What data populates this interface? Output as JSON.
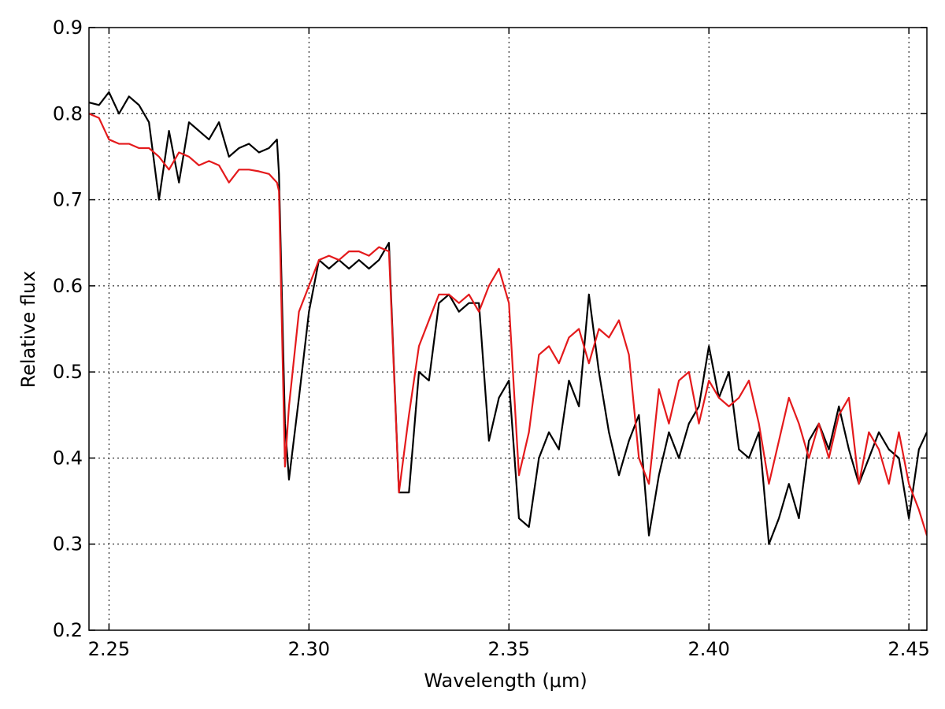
{
  "chart_data": {
    "type": "line",
    "xlabel": "Wavelength (μm)",
    "ylabel": "Relative flux",
    "x": [
      2.245,
      2.2475,
      2.25,
      2.2525,
      2.255,
      2.2575,
      2.26,
      2.2625,
      2.265,
      2.2675,
      2.27,
      2.2725,
      2.275,
      2.2775,
      2.28,
      2.2825,
      2.285,
      2.2875,
      2.29,
      2.292,
      2.2925,
      2.294,
      2.295,
      2.2975,
      2.3,
      2.3025,
      2.305,
      2.3075,
      2.31,
      2.3125,
      2.315,
      2.3175,
      2.32,
      2.3225,
      2.325,
      2.3275,
      2.33,
      2.3325,
      2.335,
      2.3375,
      2.34,
      2.3425,
      2.345,
      2.3475,
      2.35,
      2.3525,
      2.355,
      2.3575,
      2.36,
      2.3625,
      2.365,
      2.3675,
      2.37,
      2.3725,
      2.375,
      2.3775,
      2.38,
      2.3825,
      2.385,
      2.3875,
      2.39,
      2.3925,
      2.395,
      2.3975,
      2.4,
      2.4025,
      2.405,
      2.4075,
      2.41,
      2.4125,
      2.415,
      2.4175,
      2.42,
      2.4225,
      2.425,
      2.4275,
      2.43,
      2.4325,
      2.435,
      2.4375,
      2.44,
      2.4425,
      2.445,
      2.4475,
      2.45,
      2.4525,
      2.4545
    ],
    "series": [
      {
        "color": "#000000",
        "values": [
          0.813,
          0.81,
          0.825,
          0.8,
          0.82,
          0.81,
          0.79,
          0.7,
          0.78,
          0.72,
          0.79,
          0.78,
          0.77,
          0.79,
          0.75,
          0.76,
          0.765,
          0.755,
          0.76,
          0.77,
          0.73,
          0.44,
          0.375,
          0.47,
          0.57,
          0.63,
          0.62,
          0.63,
          0.62,
          0.63,
          0.62,
          0.63,
          0.65,
          0.36,
          0.36,
          0.5,
          0.49,
          0.58,
          0.59,
          0.57,
          0.58,
          0.58,
          0.42,
          0.47,
          0.49,
          0.33,
          0.32,
          0.4,
          0.43,
          0.41,
          0.49,
          0.46,
          0.59,
          0.5,
          0.43,
          0.38,
          0.42,
          0.45,
          0.31,
          0.38,
          0.43,
          0.4,
          0.44,
          0.46,
          0.53,
          0.47,
          0.5,
          0.41,
          0.4,
          0.43,
          0.3,
          0.33,
          0.37,
          0.33,
          0.42,
          0.44,
          0.41,
          0.46,
          0.41,
          0.37,
          0.4,
          0.43,
          0.41,
          0.4,
          0.33,
          0.41,
          0.43
        ]
      },
      {
        "color": "#e41a1c",
        "values": [
          0.8,
          0.795,
          0.77,
          0.765,
          0.765,
          0.76,
          0.76,
          0.75,
          0.735,
          0.755,
          0.75,
          0.74,
          0.745,
          0.74,
          0.72,
          0.735,
          0.735,
          0.733,
          0.73,
          0.72,
          0.71,
          0.39,
          0.46,
          0.57,
          0.6,
          0.63,
          0.635,
          0.63,
          0.64,
          0.64,
          0.635,
          0.645,
          0.64,
          0.36,
          0.45,
          0.53,
          0.56,
          0.59,
          0.59,
          0.58,
          0.59,
          0.57,
          0.6,
          0.62,
          0.58,
          0.38,
          0.43,
          0.52,
          0.53,
          0.51,
          0.54,
          0.55,
          0.51,
          0.55,
          0.54,
          0.56,
          0.52,
          0.4,
          0.37,
          0.48,
          0.44,
          0.49,
          0.5,
          0.44,
          0.49,
          0.47,
          0.46,
          0.47,
          0.49,
          0.44,
          0.37,
          0.42,
          0.47,
          0.44,
          0.4,
          0.44,
          0.4,
          0.45,
          0.47,
          0.37,
          0.43,
          0.41,
          0.37,
          0.43,
          0.37,
          0.34,
          0.31
        ]
      }
    ],
    "xlim": [
      2.245,
      2.4545
    ],
    "xticks": [
      2.25,
      {
        "value": 2.3,
        "label": "2.30"
      },
      2.35,
      {
        "value": 2.4,
        "label": "2.40"
      },
      2.45
    ],
    "ylim": [
      0.2,
      0.9
    ],
    "yticks": [
      0.2,
      0.3,
      0.4,
      0.5,
      0.6,
      0.7,
      0.8,
      0.9
    ],
    "grid": true
  }
}
